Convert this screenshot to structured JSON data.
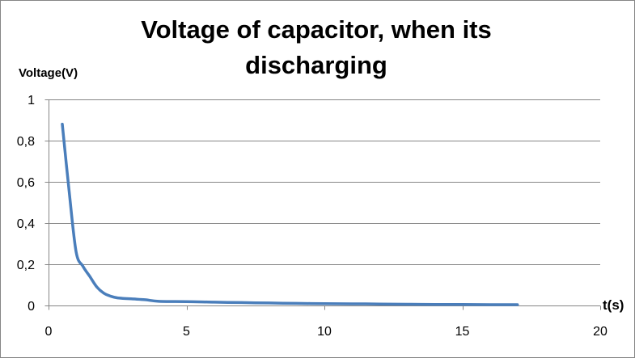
{
  "chart_data": {
    "type": "line",
    "title": "Voltage of capacitor, when its discharging",
    "xlabel": "t(s)",
    "ylabel": "Voltage(V)",
    "xlim": [
      0,
      20
    ],
    "ylim": [
      0,
      1
    ],
    "x_ticks": [
      0,
      5,
      10,
      15,
      20
    ],
    "y_ticks": [
      0,
      0.2,
      0.4,
      0.6,
      0.8,
      1
    ],
    "x_tick_labels": [
      "0",
      "5",
      "10",
      "15",
      "20"
    ],
    "y_tick_labels": [
      "0",
      "0,2",
      "0,4",
      "0,6",
      "0,8",
      "1"
    ],
    "grid": "horizontal",
    "legend": "none",
    "series": [
      {
        "color": "#4a7ebb",
        "x": [
          0.5,
          0.75,
          1.0,
          1.25,
          1.5,
          1.75,
          2.0,
          2.25,
          2.5,
          3.0,
          3.5,
          4.0,
          5.0,
          6.0,
          7.0,
          8.0,
          9.0,
          10.0,
          11.0,
          12.0,
          13.0,
          14.0,
          15.0,
          16.0,
          17.0
        ],
        "y": [
          0.88,
          0.55,
          0.26,
          0.19,
          0.14,
          0.09,
          0.06,
          0.045,
          0.037,
          0.032,
          0.028,
          0.02,
          0.019,
          0.016,
          0.014,
          0.012,
          0.01,
          0.009,
          0.008,
          0.007,
          0.006,
          0.005,
          0.005,
          0.004,
          0.004
        ]
      }
    ]
  }
}
